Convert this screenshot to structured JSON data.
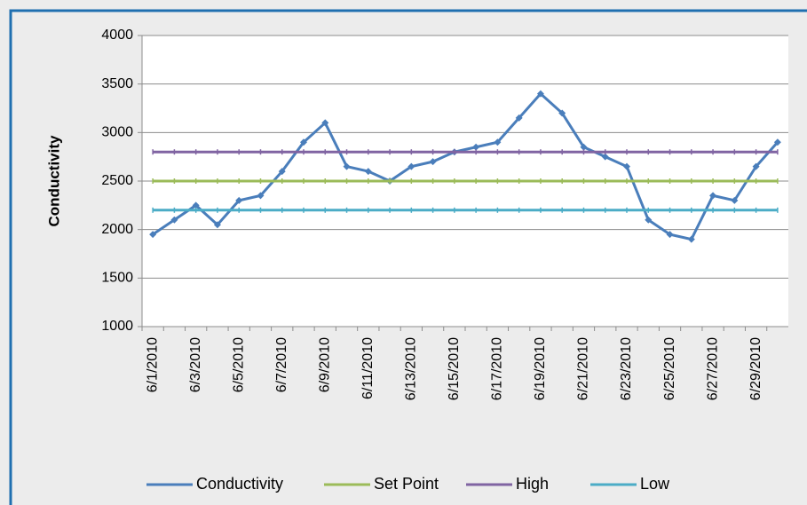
{
  "chart_data": {
    "type": "line",
    "y_label": "Conductivity",
    "categories": [
      "6/1/2010",
      null,
      "6/3/2010",
      null,
      "6/5/2010",
      null,
      "6/7/2010",
      null,
      "6/9/2010",
      null,
      "6/11/2010",
      null,
      "6/13/2010",
      null,
      "6/15/2010",
      null,
      "6/17/2010",
      null,
      "6/19/2010",
      null,
      "6/21/2010",
      null,
      "6/23/2010",
      null,
      "6/25/2010",
      null,
      "6/27/2010",
      null,
      "6/29/2010",
      null
    ],
    "series": [
      {
        "name": "Conductivity",
        "color": "#4a7ebb",
        "values": [
          1950,
          2100,
          2250,
          2050,
          2300,
          2350,
          2600,
          2900,
          3100,
          2650,
          2600,
          2500,
          2650,
          2700,
          2800,
          2850,
          2900,
          3150,
          3400,
          3200,
          2850,
          2750,
          2650,
          2100,
          1950,
          1900,
          2350,
          2300,
          2650,
          2900
        ]
      },
      {
        "name": "Set Point",
        "color": "#9bbb59",
        "values": [
          2500,
          2500,
          2500,
          2500,
          2500,
          2500,
          2500,
          2500,
          2500,
          2500,
          2500,
          2500,
          2500,
          2500,
          2500,
          2500,
          2500,
          2500,
          2500,
          2500,
          2500,
          2500,
          2500,
          2500,
          2500,
          2500,
          2500,
          2500,
          2500,
          2500
        ]
      },
      {
        "name": "High",
        "color": "#8064a2",
        "values": [
          2800,
          2800,
          2800,
          2800,
          2800,
          2800,
          2800,
          2800,
          2800,
          2800,
          2800,
          2800,
          2800,
          2800,
          2800,
          2800,
          2800,
          2800,
          2800,
          2800,
          2800,
          2800,
          2800,
          2800,
          2800,
          2800,
          2800,
          2800,
          2800,
          2800
        ]
      },
      {
        "name": "Low",
        "color": "#4bacc6",
        "values": [
          2200,
          2200,
          2200,
          2200,
          2200,
          2200,
          2200,
          2200,
          2200,
          2200,
          2200,
          2200,
          2200,
          2200,
          2200,
          2200,
          2200,
          2200,
          2200,
          2200,
          2200,
          2200,
          2200,
          2200,
          2200,
          2200,
          2200,
          2200,
          2200,
          2200
        ]
      }
    ],
    "ylim": [
      1000,
      4000
    ],
    "yticks": [
      1000,
      1500,
      2000,
      2500,
      3000,
      3500,
      4000
    ],
    "grid": true,
    "legend": "bottom"
  }
}
